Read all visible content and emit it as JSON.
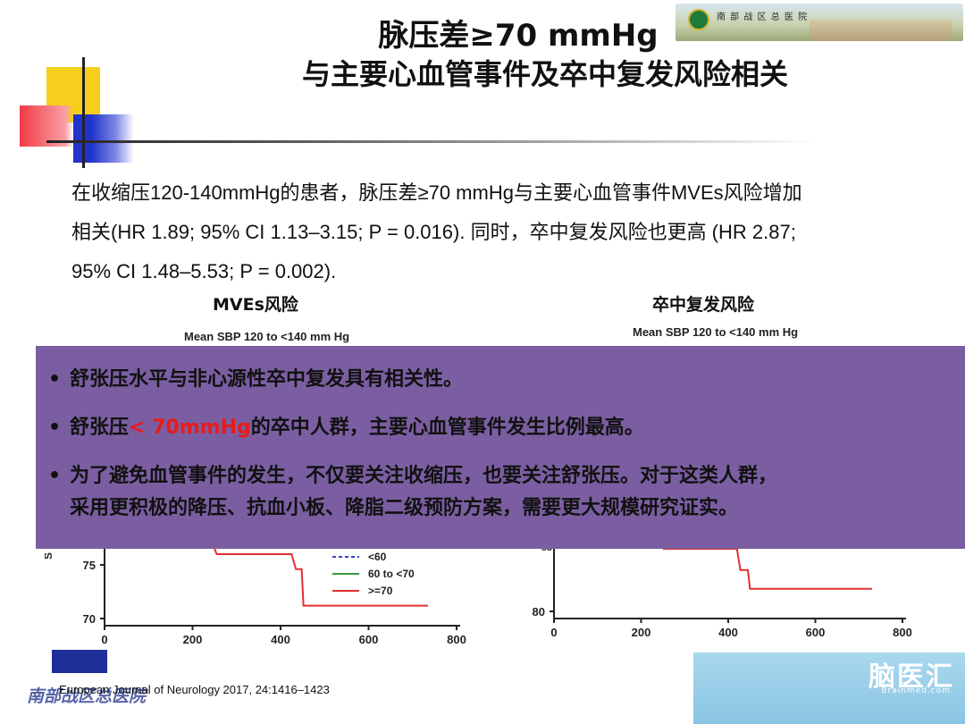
{
  "title_line1": "脉压差≥70 mmHg",
  "title_line2": "与主要心血管事件及卒中复发风险相关",
  "banner": {
    "hospital_name": "南 部 战 区 总 医 院"
  },
  "paragraph": {
    "line1": "在收缩压120-140mmHg的患者，脉压差≥70 mmHg与主要心血管事件MVEs风险增加",
    "line2": "相关(HR 1.89; 95% CI 1.13–3.15; P = 0.016). 同时，卒中复发风险也更高 (HR 2.87;",
    "line3": "95% CI 1.48–5.53; P = 0.002)."
  },
  "left_chart": {
    "title": "MVEs风险",
    "subtitle": "Mean SBP 120 to <140 mm Hg"
  },
  "right_chart": {
    "title": "卒中复发风险",
    "subtitle": "Mean SBP 120 to <140 mm Hg"
  },
  "bullets": {
    "b1": "舒张压水平与非心源性卒中复发具有相关性。",
    "b2_pre": "舒张压",
    "b2_red": "< 70mmHg",
    "b2_post": "的卒中人群，主要心血管事件发生比例最高。",
    "b3_line1": "为了避免血管事件的发生，不仅要关注收缩压，也要关注舒张压。对于这类人群，",
    "b3_line2": "采用更积极的降压、抗血小板、降脂二级预防方案，需要更大规模研究证实。",
    "bullet_char": "•"
  },
  "chart_data": [
    {
      "type": "line",
      "title": "MVEs风险",
      "subtitle": "Mean SBP 120 to <140 mm Hg",
      "x_ticks": [
        "0",
        "200",
        "400",
        "600",
        "800"
      ],
      "y_ticks": [
        "70",
        "75"
      ],
      "xlim": [
        0,
        800
      ],
      "ylim": [
        70,
        77
      ],
      "legend": [
        "<60",
        "60 to <70",
        ">=70"
      ],
      "series": [
        {
          "name": ">=70",
          "color": "#e03030",
          "points": [
            [
              245,
              77
            ],
            [
              255,
              76
            ],
            [
              425,
              76
            ],
            [
              435,
              74.6
            ],
            [
              448,
              74.6
            ],
            [
              452,
              71.2
            ],
            [
              735,
              71.2
            ]
          ]
        }
      ]
    },
    {
      "type": "line",
      "title": "卒中复发风险",
      "subtitle": "Mean SBP 120 to <140 mm Hg",
      "x_ticks": [
        "0",
        "200",
        "400",
        "600",
        "800"
      ],
      "y_ticks": [
        "80"
      ],
      "xlim": [
        0,
        800
      ],
      "ylim": [
        80,
        85
      ],
      "series": [
        {
          "name": "",
          "color": "#e03030",
          "points": [
            [
              250,
              85
            ],
            [
              420,
              85
            ],
            [
              428,
              83.3
            ],
            [
              445,
              83.3
            ],
            [
              450,
              81.8
            ],
            [
              730,
              81.8
            ]
          ]
        }
      ]
    }
  ],
  "footer": {
    "journal": "European Journal of Neurology 2017, 24:1416–1423",
    "hospital": "南部战区总医院"
  },
  "watermark": {
    "text": "脑医汇",
    "sub": "Brainmed.com"
  },
  "colors": {
    "overlay": "#7b5ea1",
    "accent_red": "#e81a1a"
  }
}
